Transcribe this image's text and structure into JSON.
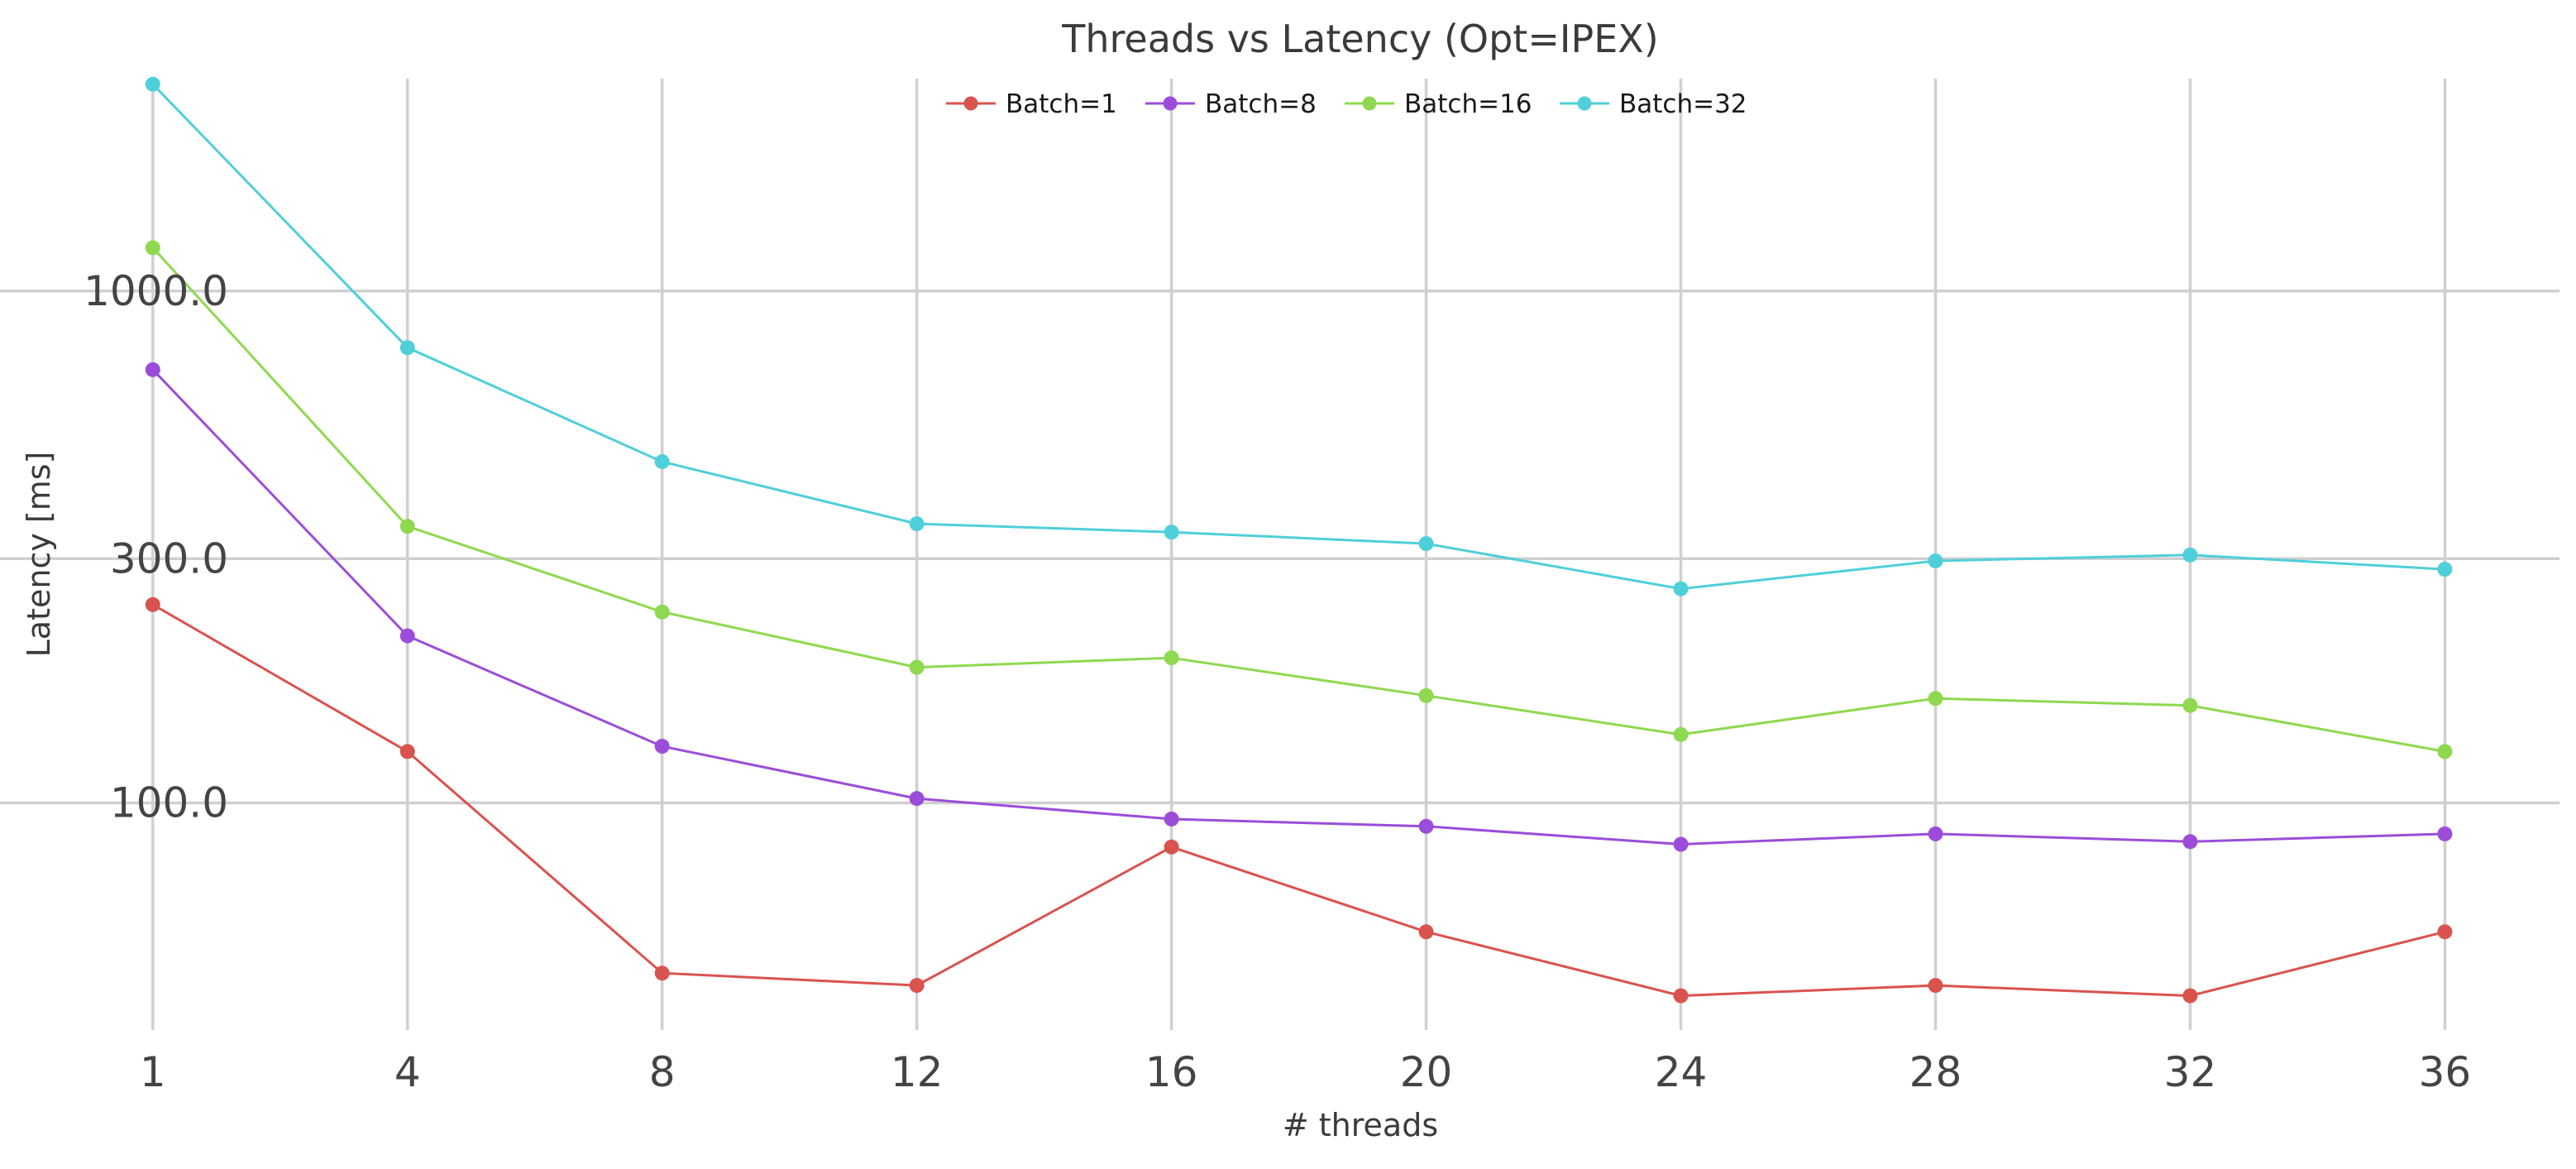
{
  "chart_data": {
    "type": "line",
    "title": "Threads vs Latency (Opt=IPEX)",
    "xlabel": "# threads",
    "ylabel": "Latency [ms]",
    "yscale": "log",
    "ylim": [
      36,
      2600
    ],
    "xlim": [
      -0.6,
      9.45
    ],
    "grid": true,
    "legend_position": "top-center",
    "categories": [
      "1",
      "4",
      "8",
      "12",
      "16",
      "20",
      "24",
      "28",
      "32",
      "36"
    ],
    "y_ticks": [
      100,
      300,
      1000
    ],
    "y_tick_labels": [
      "100.0",
      "300.0",
      "1000.0"
    ],
    "series": [
      {
        "name": "Batch=1",
        "color": "#d9534f",
        "values": [
          244,
          126,
          46.5,
          44.0,
          82,
          56,
          42.0,
          44.0,
          42.0,
          56
        ]
      },
      {
        "name": "Batch=8",
        "color": "#9b4dd9",
        "values": [
          702,
          212,
          129,
          102,
          93,
          90,
          83,
          87,
          84,
          87
        ]
      },
      {
        "name": "Batch=16",
        "color": "#8ed94f",
        "values": [
          1215,
          347,
          236,
          184,
          192,
          162,
          136,
          160,
          155,
          126
        ]
      },
      {
        "name": "Batch=32",
        "color": "#4fcfd9",
        "values": [
          2535,
          775,
          464,
          351,
          338,
          321,
          262,
          297,
          305,
          286
        ]
      }
    ]
  }
}
